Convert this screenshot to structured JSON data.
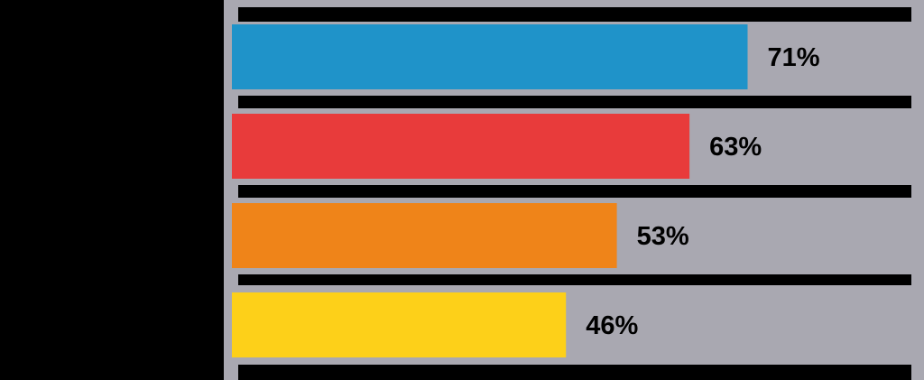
{
  "chart_data": {
    "type": "bar",
    "orientation": "horizontal",
    "title": "",
    "xlabel": "",
    "ylabel": "",
    "xlim": [
      0,
      100
    ],
    "grid": false,
    "legend": "none",
    "series": [
      {
        "values": [
          71,
          63,
          53,
          46
        ],
        "labels": [
          "71%",
          "63%",
          "53%",
          "46%"
        ],
        "colors": [
          "#1f93c9",
          "#e83b3b",
          "#ef8419",
          "#fdd019"
        ]
      }
    ],
    "colors": {
      "background": "#000000",
      "track": "#a9a8b1",
      "label_text": "#000000"
    }
  }
}
